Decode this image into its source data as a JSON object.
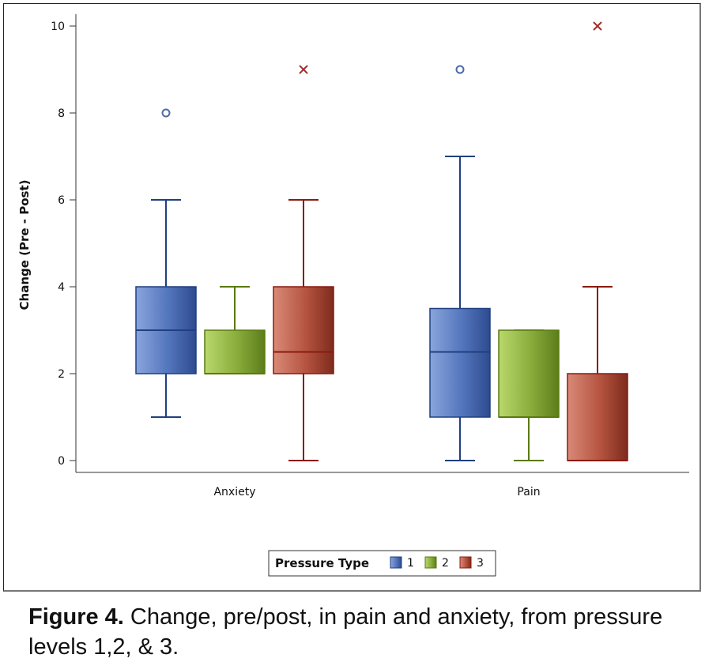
{
  "chart_data": {
    "type": "boxplot",
    "title": "",
    "xlabel": "",
    "ylabel": "Change (Pre - Post)",
    "ylim": [
      0,
      10
    ],
    "yticks": [
      0,
      2,
      4,
      6,
      8,
      10
    ],
    "categories": [
      "Anxiety",
      "Pain"
    ],
    "legend": {
      "title": "Pressure Type",
      "placement": "bottom-center"
    },
    "series": [
      {
        "name": "1",
        "color": "#4f6fb0",
        "edge": "#1f3f80",
        "boxes": [
          {
            "min": 1,
            "q1": 2,
            "median": 3,
            "q3": 4,
            "max": 6,
            "outliers": [
              8
            ],
            "outlier_marker": "circle"
          },
          {
            "min": 0,
            "q1": 1,
            "median": 2.5,
            "q3": 3.5,
            "max": 7,
            "outliers": [
              9
            ],
            "outlier_marker": "circle"
          }
        ]
      },
      {
        "name": "2",
        "color": "#86a83a",
        "edge": "#5a7a10",
        "boxes": [
          {
            "min": 2,
            "q1": 2,
            "median": 2,
            "q3": 3,
            "max": 4,
            "outliers": [],
            "outlier_marker": "none"
          },
          {
            "min": 0,
            "q1": 1,
            "median": 1,
            "q3": 3,
            "max": 3,
            "outliers": [],
            "outlier_marker": "none"
          }
        ]
      },
      {
        "name": "3",
        "color": "#b0523f",
        "edge": "#8a1a10",
        "boxes": [
          {
            "min": 0,
            "q1": 2,
            "median": 2.5,
            "q3": 4,
            "max": 6,
            "outliers": [
              9
            ],
            "outlier_marker": "x"
          },
          {
            "min": 0,
            "q1": 0,
            "median": 0,
            "q3": 2,
            "max": 4,
            "outliers": [
              10
            ],
            "outlier_marker": "x"
          }
        ]
      }
    ]
  },
  "caption": {
    "label": "Figure 4.",
    "text": " Change, pre/post, in pain and anxiety, from pressure levels 1,2, & 3."
  }
}
